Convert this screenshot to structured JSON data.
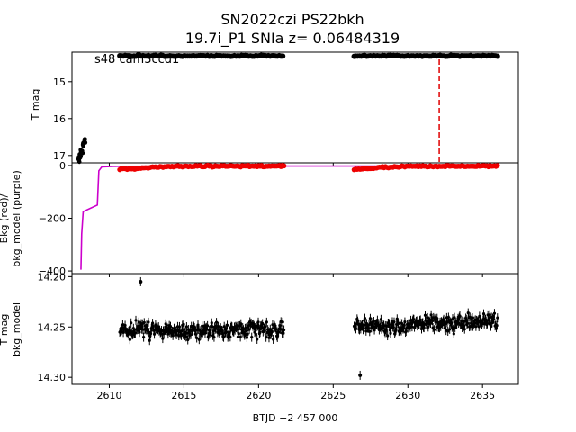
{
  "chart_data": [
    {
      "type": "scatter",
      "panel": "top",
      "title": [
        "SN2022czi  PS22bkh",
        "19.7i_P1 SNIa z= 0.06484319"
      ],
      "annotation": "s48 cam3ccd1",
      "xlabel": "",
      "ylabel": "T mag",
      "xlim": [
        2607.5,
        2637.4
      ],
      "ylim": [
        17.2,
        14.2
      ],
      "y_inverted": true,
      "yticks": [
        15,
        16,
        17
      ],
      "show_xtick_labels": false,
      "grid": false,
      "series": [
        {
          "marker_color": "#000000",
          "segments": [
            {
              "x": [
                2607.95,
                2608.05,
                2608.15,
                2608.25,
                2608.32
              ],
              "y": [
                17.1,
                17.0,
                16.9,
                16.7,
                16.6
              ]
            },
            {
              "x_range": [
                2610.7,
                2621.7
              ],
              "y_level": 14.3
            },
            {
              "x_range": [
                2626.4,
                2636.0
              ],
              "y_level": 14.3
            }
          ]
        }
      ],
      "vlines": [
        {
          "x": 2632.1,
          "color": "#e00000",
          "style": "dashed"
        }
      ]
    },
    {
      "type": "line",
      "panel": "middle",
      "xlabel": "",
      "ylabel": [
        "Bkg (red)/",
        "bkg_model (purple)"
      ],
      "xlim": [
        2607.5,
        2637.4
      ],
      "ylim": [
        -410,
        10
      ],
      "yticks": [
        0,
        -200,
        -400
      ],
      "show_xtick_labels": false,
      "grid": false,
      "series": [
        {
          "color": "#cc00cc",
          "style": "line",
          "x": [
            2608.1,
            2608.15,
            2608.25,
            2609.2,
            2609.3,
            2609.5,
            2610.5,
            2621.7,
            2626.4,
            2630.0,
            2636.0
          ],
          "y": [
            -395,
            -260,
            -175,
            -150,
            -20,
            -5,
            -3,
            -2,
            -2,
            -2,
            -2
          ]
        },
        {
          "color": "#ee0000",
          "style": "markers",
          "segments": [
            {
              "x_range": [
                2610.7,
                2621.7
              ],
              "y_profile": [
                [
                  2610.7,
                  -15
                ],
                [
                  2612.5,
                  -8
                ],
                [
                  2615.0,
                  -3
                ],
                [
                  2621.7,
                  -2
                ]
              ]
            },
            {
              "x_range": [
                2626.4,
                2636.0
              ],
              "y_profile": [
                [
                  2626.4,
                  -15
                ],
                [
                  2628.0,
                  -8
                ],
                [
                  2630.0,
                  -3
                ],
                [
                  2636.0,
                  -2
                ]
              ]
            }
          ]
        }
      ]
    },
    {
      "type": "scatter",
      "panel": "bottom",
      "xlabel": "BTJD −2 457 000",
      "ylabel": [
        "T mag",
        "bkg_model"
      ],
      "xlim": [
        2607.5,
        2637.4
      ],
      "ylim": [
        14.307,
        14.197
      ],
      "y_inverted": true,
      "yticks": [
        14.2,
        14.25,
        14.3
      ],
      "xticks": [
        2610,
        2615,
        2620,
        2625,
        2630,
        2635
      ],
      "grid": false,
      "series": [
        {
          "marker_color": "#000000",
          "error_bars": true,
          "segments": [
            {
              "x_range": [
                2610.7,
                2621.7
              ],
              "y_center": 14.253,
              "y_spread": 0.012
            },
            {
              "x_range": [
                2626.4,
                2636.0
              ],
              "y_center": 14.25,
              "y_spread": 0.012,
              "trend": -0.006
            }
          ],
          "outliers": [
            {
              "x": 2612.1,
              "y": 14.205
            },
            {
              "x": 2626.8,
              "y": 14.298
            }
          ]
        }
      ]
    }
  ]
}
